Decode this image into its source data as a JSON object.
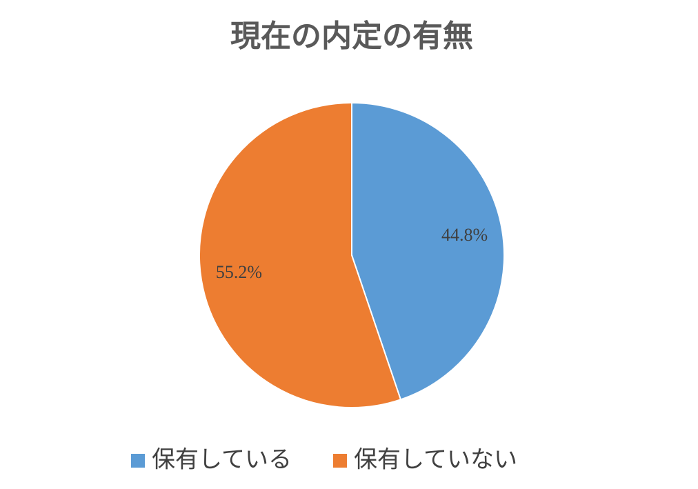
{
  "chart_data": {
    "type": "pie",
    "title": "現在の内定の有無",
    "categories": [
      "保有している",
      "保有していない"
    ],
    "values": [
      44.8,
      55.2
    ],
    "value_labels": [
      "44.8%",
      "55.2%"
    ],
    "colors": [
      "#5b9bd5",
      "#ed7d31"
    ],
    "legend": "bottom"
  }
}
